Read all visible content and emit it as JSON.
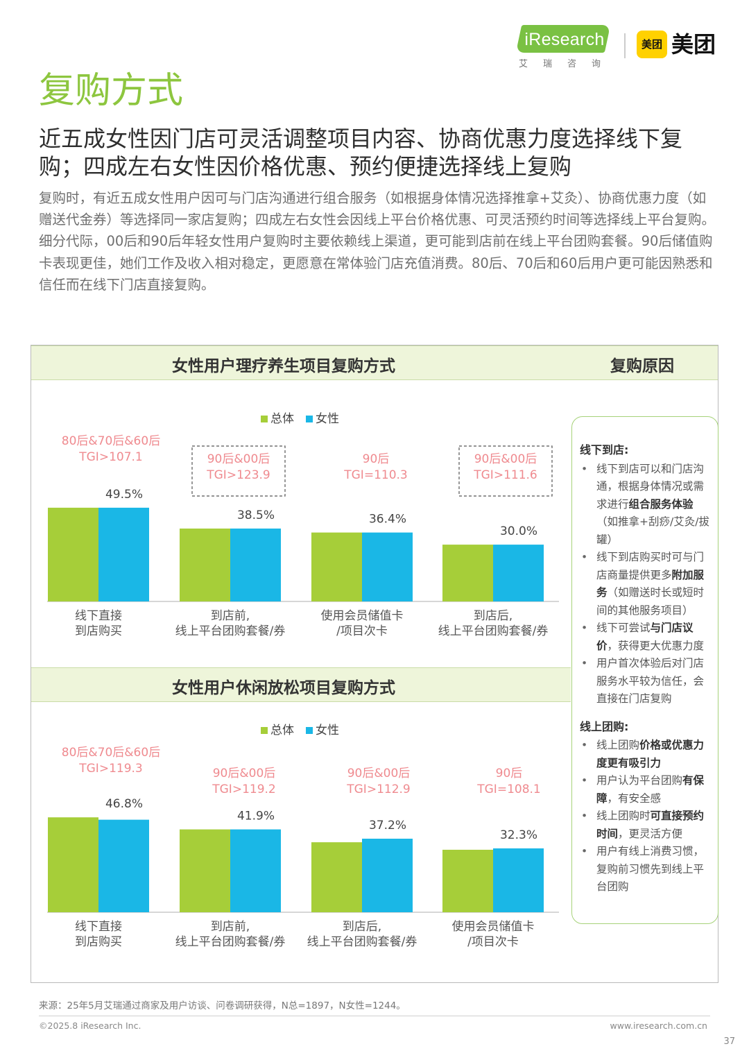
{
  "brand": {
    "ires_logo": "iResearch",
    "ires_sub": "艾瑞咨询",
    "meituan_badge": "美团",
    "meituan_text": "美团"
  },
  "page_title": "复购方式",
  "headline": "近五成女性因门店可灵活调整项目内容、协商优惠力度选择线下复购；四成左右女性因价格优惠、预约便捷选择线上复购",
  "summary": [
    "复购时，有近五成女性用户因可与门店沟通进行组合服务（如根据身体情况选择推拿+艾灸）、协商优惠力度（如赠送代金券）等选择同一家店复购；四成左右女性会因线上平台价格优惠、可灵活预约时间等选择线上平台复购。",
    "细分代际，00后和90后年轻女性用户复购时主要依赖线上渠道，更可能到店前在线上平台团购套餐。90后储值购卡表现更佳，她们工作及收入相对稳定，更愿意在常体验门店充值消费。80后、70后和60后用户更可能因熟悉和信任而在线下门店直接复购。"
  ],
  "colors": {
    "overall": "#a6ce39",
    "female": "#1ab7e6",
    "accent_green": "#8dc63f",
    "tgi_red": "#ef8a8f"
  },
  "side_panel": {
    "title": "复购原因",
    "offline_title": "线下到店:",
    "offline_items": [
      [
        {
          "t": "线下到店可以和门店沟通，根据身体情况或需求进行"
        },
        {
          "t": "组合服务体验",
          "b": true
        },
        {
          "t": "（如推拿+刮痧/艾灸/拔罐）"
        }
      ],
      [
        {
          "t": "线下到店购买时可与门店商量提供更多"
        },
        {
          "t": "附加服务",
          "b": true
        },
        {
          "t": "（如赠送时长或短时间的其他服务项目）"
        }
      ],
      [
        {
          "t": "线下可尝试"
        },
        {
          "t": "与门店议价",
          "b": true
        },
        {
          "t": "，获得更大优惠力度"
        }
      ],
      [
        {
          "t": "用户首次体验后对门店服务水平较为信任，会直接在门店复购"
        }
      ]
    ],
    "online_title": "线上团购:",
    "online_items": [
      [
        {
          "t": "线上团购"
        },
        {
          "t": "价格或优惠力度更有吸引力",
          "b": true
        }
      ],
      [
        {
          "t": "用户认为平台团购"
        },
        {
          "t": "有保障",
          "b": true
        },
        {
          "t": "，有安全感"
        }
      ],
      [
        {
          "t": "线上团购时"
        },
        {
          "t": "可直接预约时间",
          "b": true
        },
        {
          "t": "，更灵活方便"
        }
      ],
      [
        {
          "t": "用户有线上消费习惯，复购前习惯先到线上平台团购"
        }
      ]
    ]
  },
  "chart_data": [
    {
      "type": "bar",
      "title": "女性用户理疗养生项目复购方式",
      "legend": [
        "总体",
        "女性"
      ],
      "categories": [
        [
          "线下直接",
          "到店购买"
        ],
        [
          "到店前,",
          "线上平台团购套餐/券"
        ],
        [
          "使用会员储值卡",
          "/项目次卡"
        ],
        [
          "到店后,",
          "线上平台团购套餐/券"
        ]
      ],
      "series": [
        {
          "name": "总体",
          "values": [
            49.5,
            38.5,
            36.4,
            30.0
          ]
        },
        {
          "name": "女性",
          "values": [
            49.5,
            38.5,
            36.4,
            30.0
          ]
        }
      ],
      "data_labels": [
        "49.5%",
        "38.5%",
        "36.4%",
        "30.0%"
      ],
      "tgi": [
        {
          "group": "80后&70后&60后",
          "value": "TGI>107.1",
          "boxed": false
        },
        {
          "group": "90后&00后",
          "value": "TGI>123.9",
          "boxed": true
        },
        {
          "group": "90后",
          "value": "TGI=110.3",
          "boxed": false
        },
        {
          "group": "90后&00后",
          "value": "TGI>111.6",
          "boxed": true
        }
      ],
      "ylim": [
        0,
        60
      ]
    },
    {
      "type": "bar",
      "title": "女性用户休闲放松项目复购方式",
      "legend": [
        "总体",
        "女性"
      ],
      "categories": [
        [
          "线下直接",
          "到店购买"
        ],
        [
          "到店前,",
          "线上平台团购套餐/券"
        ],
        [
          "到店后,",
          "线上平台团购套餐/券"
        ],
        [
          "使用会员储值卡",
          "/项目次卡"
        ]
      ],
      "series": [
        {
          "name": "总体",
          "values": [
            48.0,
            41.9,
            35.4,
            31.6
          ]
        },
        {
          "name": "女性",
          "values": [
            46.8,
            41.9,
            37.2,
            32.3
          ]
        }
      ],
      "data_labels": [
        "46.8%",
        "41.9%",
        "37.2%",
        "32.3%"
      ],
      "tgi": [
        {
          "group": "80后&70后&60后",
          "value": "TGI>119.3",
          "boxed": false
        },
        {
          "group": "90后&00后",
          "value": "TGI>119.2",
          "boxed": false
        },
        {
          "group": "90后&00后",
          "value": "TGI>112.9",
          "boxed": false
        },
        {
          "group": "90后",
          "value": "TGI=108.1",
          "boxed": false
        }
      ],
      "ylim": [
        0,
        60
      ]
    }
  ],
  "footer": {
    "source": "来源：25年5月艾瑞通过商家及用户访谈、问卷调研获得，N总=1897，N女性=1244。",
    "copyright": "©2025.8 iResearch Inc.",
    "url": "www.iresearch.com.cn",
    "page": "37"
  }
}
